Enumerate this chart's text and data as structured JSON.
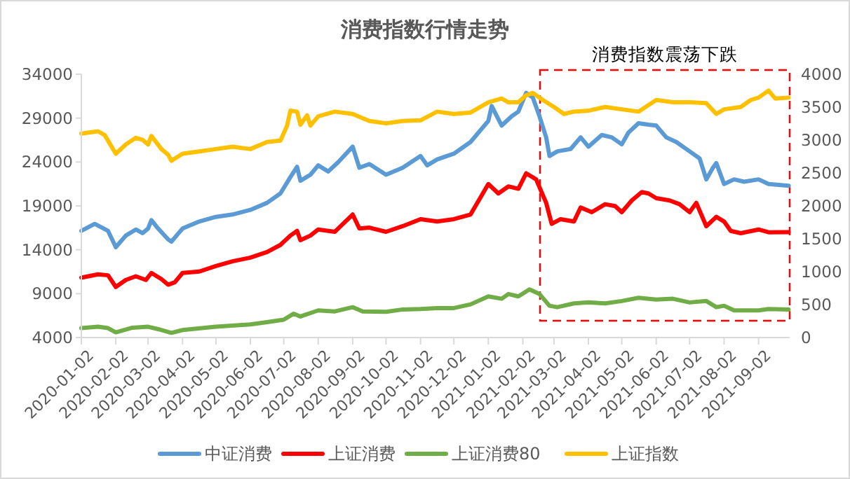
{
  "chart_data": {
    "type": "line",
    "title": "消费指数行情走势",
    "xlim": [
      "2020-01-02",
      "2021-09-30"
    ],
    "xticks": [
      {
        "value": "2020-01-02",
        "label": "2020-01-02"
      },
      {
        "value": "2020-02-02",
        "label": "2020-02-02"
      },
      {
        "value": "2020-03-02",
        "label": "2020-03-02"
      },
      {
        "value": "2020-04-02",
        "label": "2020-04-02"
      },
      {
        "value": "2020-05-02",
        "label": "2020-05-02"
      },
      {
        "value": "2020-06-02",
        "label": "2020-06-02"
      },
      {
        "value": "2020-07-02",
        "label": "2020-07-02"
      },
      {
        "value": "2020-08-02",
        "label": "2020-08-02"
      },
      {
        "value": "2020-09-02",
        "label": "2020-09-02"
      },
      {
        "value": "2020-10-02",
        "label": "2020-10-02"
      },
      {
        "value": "2020-11-02",
        "label": "2020-11-02"
      },
      {
        "value": "2020-12-02",
        "label": "2020-12-02"
      },
      {
        "value": "2021-01-02",
        "label": "2021-01-02"
      },
      {
        "value": "2021-02-02",
        "label": "2021-02-02"
      },
      {
        "value": "2021-03-02",
        "label": "2021-03-02"
      },
      {
        "value": "2021-04-02",
        "label": "2021-04-02"
      },
      {
        "value": "2021-05-02",
        "label": "2021-05-02"
      },
      {
        "value": "2021-06-02",
        "label": "2021-06-02"
      },
      {
        "value": "2021-07-02",
        "label": "2021-07-02"
      },
      {
        "value": "2021-08-02",
        "label": "2021-08-02"
      },
      {
        "value": "2021-09-02",
        "label": "2021-09-02"
      }
    ],
    "ylim": [
      4000,
      34000
    ],
    "yticks": [
      4000,
      9000,
      14000,
      19000,
      24000,
      29000,
      34000
    ],
    "y2lim": [
      0,
      4000
    ],
    "y2ticks": [
      0,
      500,
      1000,
      1500,
      2000,
      2500,
      3000,
      3500,
      4000
    ],
    "legend": "bottom",
    "grid": false,
    "line_style": "solid",
    "marker": "none",
    "annotations": [
      "消费指数震荡下跌"
    ],
    "series": [
      {
        "name": "中证消费",
        "color": "#5b9bd5",
        "x": [
          "2020-01-02",
          "2020-01-14",
          "2020-01-26",
          "2020-02-02",
          "2020-02-11",
          "2020-02-20",
          "2020-02-26",
          "2020-03-02",
          "2020-03-05",
          "2020-03-11",
          "2020-03-20",
          "2020-03-23",
          "2020-04-02",
          "2020-04-17",
          "2020-05-02",
          "2020-05-17",
          "2020-06-02",
          "2020-06-17",
          "2020-06-29",
          "2020-07-08",
          "2020-07-14",
          "2020-07-17",
          "2020-07-26",
          "2020-08-02",
          "2020-08-11",
          "2020-08-20",
          "2020-09-02",
          "2020-09-08",
          "2020-09-17",
          "2020-10-02",
          "2020-10-17",
          "2020-11-02",
          "2020-11-08",
          "2020-11-17",
          "2020-12-02",
          "2020-12-17",
          "2021-01-02",
          "2021-01-05",
          "2021-01-14",
          "2021-01-23",
          "2021-01-29",
          "2021-02-05",
          "2021-02-11",
          "2021-02-17",
          "2021-02-23",
          "2021-02-26",
          "2021-03-05",
          "2021-03-17",
          "2021-03-26",
          "2021-04-02",
          "2021-04-14",
          "2021-04-23",
          "2021-05-02",
          "2021-05-08",
          "2021-05-17",
          "2021-05-26",
          "2021-06-02",
          "2021-06-11",
          "2021-06-20",
          "2021-07-02",
          "2021-07-11",
          "2021-07-17",
          "2021-07-23",
          "2021-07-26",
          "2021-08-02",
          "2021-08-11",
          "2021-08-20",
          "2021-09-02",
          "2021-09-11",
          "2021-09-29"
        ],
        "values": [
          16150,
          16950,
          16150,
          14290,
          15620,
          16310,
          15890,
          16420,
          17380,
          16420,
          15190,
          14930,
          16420,
          17220,
          17750,
          18020,
          18550,
          19350,
          20420,
          22280,
          23450,
          21860,
          22550,
          23620,
          22920,
          23990,
          25750,
          23350,
          23770,
          22550,
          23350,
          24680,
          23620,
          24300,
          24950,
          26280,
          28680,
          30380,
          28150,
          29210,
          29740,
          31880,
          31340,
          29210,
          26810,
          24680,
          25210,
          25480,
          26810,
          25750,
          27080,
          26810,
          26010,
          27350,
          28410,
          28250,
          28150,
          26810,
          26280,
          25210,
          24410,
          22020,
          23350,
          23880,
          21490,
          22020,
          21750,
          22020,
          21490,
          21300
        ]
      },
      {
        "name": "上证消费",
        "color": "#ff0000",
        "x": [
          "2020-01-02",
          "2020-01-17",
          "2020-01-26",
          "2020-02-02",
          "2020-02-11",
          "2020-02-20",
          "2020-02-29",
          "2020-03-05",
          "2020-03-14",
          "2020-03-20",
          "2020-03-26",
          "2020-04-02",
          "2020-04-17",
          "2020-05-02",
          "2020-05-17",
          "2020-06-02",
          "2020-06-17",
          "2020-06-29",
          "2020-07-08",
          "2020-07-14",
          "2020-07-17",
          "2020-07-26",
          "2020-08-02",
          "2020-08-17",
          "2020-09-02",
          "2020-09-08",
          "2020-09-17",
          "2020-10-02",
          "2020-10-17",
          "2020-11-02",
          "2020-11-17",
          "2020-12-02",
          "2020-12-17",
          "2021-01-02",
          "2021-01-11",
          "2021-01-20",
          "2021-01-29",
          "2021-02-05",
          "2021-02-14",
          "2021-02-23",
          "2021-02-28",
          "2021-03-08",
          "2021-03-20",
          "2021-03-26",
          "2021-04-05",
          "2021-04-17",
          "2021-04-26",
          "2021-05-02",
          "2021-05-11",
          "2021-05-20",
          "2021-05-26",
          "2021-06-02",
          "2021-06-14",
          "2021-06-23",
          "2021-07-02",
          "2021-07-08",
          "2021-07-17",
          "2021-07-26",
          "2021-08-02",
          "2021-08-08",
          "2021-08-17",
          "2021-09-02",
          "2021-09-11",
          "2021-09-29"
        ],
        "values": [
          10820,
          11200,
          11090,
          9760,
          10560,
          10980,
          10560,
          11360,
          10660,
          10020,
          10290,
          11360,
          11520,
          12150,
          12690,
          13110,
          13750,
          14550,
          15620,
          16150,
          15090,
          15620,
          16310,
          16050,
          18020,
          16420,
          16520,
          16050,
          16690,
          17490,
          17220,
          17490,
          18020,
          21490,
          20420,
          21220,
          20950,
          22710,
          22020,
          19350,
          16950,
          17490,
          17220,
          18820,
          18280,
          19190,
          18980,
          18280,
          19620,
          20580,
          20420,
          19880,
          19620,
          19190,
          18280,
          19350,
          16690,
          17750,
          17220,
          16150,
          15890,
          16310,
          15990,
          16000
        ]
      },
      {
        "name": "上证消费80",
        "color": "#70ad47",
        "x": [
          "2020-01-02",
          "2020-01-17",
          "2020-01-26",
          "2020-02-02",
          "2020-02-17",
          "2020-03-02",
          "2020-03-11",
          "2020-03-23",
          "2020-04-02",
          "2020-05-02",
          "2020-06-02",
          "2020-06-17",
          "2020-07-02",
          "2020-07-11",
          "2020-07-17",
          "2020-08-02",
          "2020-08-17",
          "2020-09-02",
          "2020-09-11",
          "2020-10-02",
          "2020-10-17",
          "2020-11-02",
          "2020-11-17",
          "2020-12-02",
          "2020-12-17",
          "2021-01-02",
          "2021-01-14",
          "2021-01-20",
          "2021-01-29",
          "2021-02-08",
          "2021-02-17",
          "2021-02-26",
          "2021-03-05",
          "2021-03-20",
          "2021-04-02",
          "2021-04-17",
          "2021-05-02",
          "2021-05-17",
          "2021-06-02",
          "2021-06-17",
          "2021-07-02",
          "2021-07-17",
          "2021-07-26",
          "2021-08-02",
          "2021-08-11",
          "2021-09-02",
          "2021-09-11",
          "2021-09-29"
        ],
        "values": [
          5070,
          5230,
          5070,
          4590,
          5120,
          5230,
          4960,
          4530,
          4850,
          5230,
          5490,
          5760,
          6030,
          6720,
          6400,
          7090,
          6980,
          7460,
          6980,
          6930,
          7200,
          7250,
          7360,
          7360,
          7780,
          8690,
          8420,
          8960,
          8690,
          9490,
          8960,
          7620,
          7460,
          7890,
          8000,
          7890,
          8160,
          8530,
          8320,
          8420,
          8000,
          8160,
          7460,
          7620,
          7090,
          7090,
          7250,
          7200
        ]
      },
      {
        "name": "上证指数",
        "color": "#ffc000",
        "axis": "y2",
        "x": [
          "2020-01-02",
          "2020-01-17",
          "2020-01-23",
          "2020-02-02",
          "2020-02-11",
          "2020-02-20",
          "2020-02-26",
          "2020-03-02",
          "2020-03-05",
          "2020-03-14",
          "2020-03-20",
          "2020-03-23",
          "2020-04-02",
          "2020-04-17",
          "2020-05-02",
          "2020-05-17",
          "2020-06-02",
          "2020-06-17",
          "2020-06-29",
          "2020-07-05",
          "2020-07-08",
          "2020-07-14",
          "2020-07-17",
          "2020-07-23",
          "2020-07-26",
          "2020-08-02",
          "2020-08-17",
          "2020-09-02",
          "2020-09-17",
          "2020-10-02",
          "2020-10-17",
          "2020-11-02",
          "2020-11-17",
          "2020-12-02",
          "2020-12-17",
          "2021-01-02",
          "2021-01-14",
          "2021-01-20",
          "2021-01-29",
          "2021-02-05",
          "2021-02-11",
          "2021-02-20",
          "2021-03-02",
          "2021-03-11",
          "2021-03-20",
          "2021-04-02",
          "2021-04-17",
          "2021-05-02",
          "2021-05-17",
          "2021-06-02",
          "2021-06-17",
          "2021-07-02",
          "2021-07-17",
          "2021-07-26",
          "2021-08-02",
          "2021-08-17",
          "2021-08-26",
          "2021-09-02",
          "2021-09-11",
          "2021-09-17",
          "2021-09-29"
        ],
        "values": [
          3098,
          3133,
          3076,
          2792,
          2934,
          3034,
          3005,
          2934,
          3062,
          2863,
          2778,
          2686,
          2792,
          2828,
          2863,
          2899,
          2863,
          2970,
          2991,
          3219,
          3446,
          3432,
          3233,
          3375,
          3219,
          3361,
          3432,
          3396,
          3290,
          3254,
          3290,
          3300,
          3432,
          3396,
          3418,
          3574,
          3631,
          3574,
          3574,
          3680,
          3716,
          3609,
          3503,
          3396,
          3432,
          3446,
          3503,
          3467,
          3432,
          3609,
          3574,
          3574,
          3560,
          3396,
          3467,
          3503,
          3609,
          3645,
          3751,
          3631,
          3645
        ]
      }
    ]
  }
}
